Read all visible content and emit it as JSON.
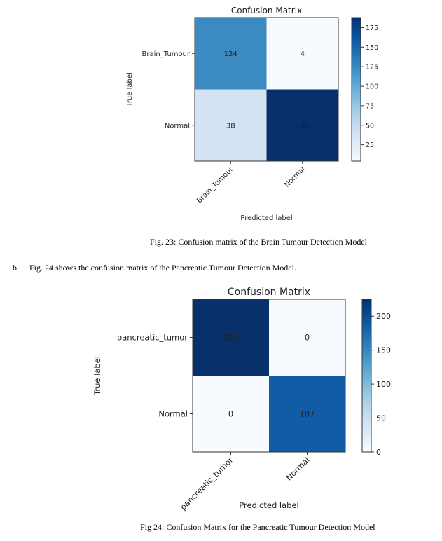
{
  "figures": [
    {
      "caption": "Fig. 23: Confusion matrix of the Brain Tumour Detection Model",
      "chart_data": {
        "type": "heatmap",
        "title": "Confusion Matrix",
        "xlabel": "Predicted label",
        "ylabel": "True label",
        "x_categories": [
          "Brain_Tumour",
          "Normal"
        ],
        "y_categories": [
          "Brain_Tumour",
          "Normal"
        ],
        "values": [
          [
            124,
            4
          ],
          [
            38,
            188
          ]
        ],
        "colormap": "Blues",
        "colorbar_ticks": [
          25,
          50,
          75,
          100,
          125,
          150,
          175
        ],
        "colorbar_range": [
          4,
          188
        ],
        "colors": {
          "low": "#f7fbff",
          "high": "#08306b"
        }
      }
    },
    {
      "caption": "Fig 24: Confusion Matrix for the Pancreatic Tumour Detection Model",
      "chart_data": {
        "type": "heatmap",
        "title": "Confusion Matrix",
        "xlabel": "Predicted label",
        "ylabel": "True label",
        "x_categories": [
          "pancreatic_tumor",
          "Normal"
        ],
        "y_categories": [
          "pancreatic_tumor",
          "Normal"
        ],
        "values": [
          [
            225,
            0
          ],
          [
            0,
            187
          ]
        ],
        "colormap": "Blues",
        "colorbar_ticks": [
          0,
          50,
          100,
          150,
          200
        ],
        "colorbar_range": [
          0,
          225
        ],
        "colors": {
          "low": "#f7fbff",
          "high": "#08306b"
        }
      }
    }
  ],
  "paragraph": {
    "marker": "b.",
    "text": "Fig. 24 shows the confusion matrix of the Pancreatic Tumour Detection Model."
  }
}
